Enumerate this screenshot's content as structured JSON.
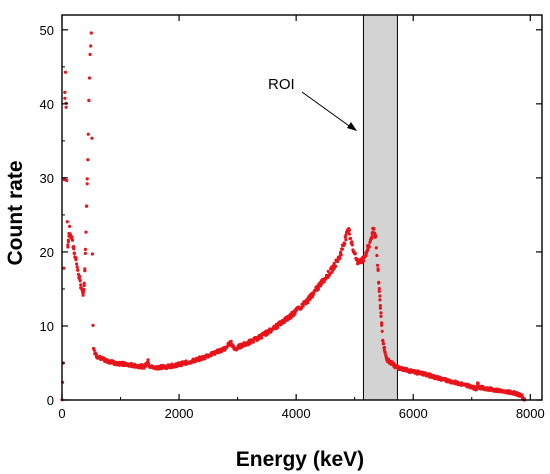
{
  "chart_data": {
    "type": "scatter",
    "xlabel": "Energy (keV)",
    "ylabel": "Count rate",
    "xlim": [
      0,
      8200
    ],
    "ylim": [
      0,
      52
    ],
    "x_ticks": [
      0,
      2000,
      4000,
      6000,
      8000
    ],
    "y_ticks": [
      0,
      10,
      20,
      30,
      40,
      50
    ],
    "grid": false,
    "marker_color": "#e8141b",
    "roi": {
      "label": "ROI",
      "x_start": 5150,
      "x_end": 5730,
      "fill": "#d3d3d3"
    },
    "profile": [
      [
        0,
        0
      ],
      [
        20,
        5
      ],
      [
        40,
        30
      ],
      [
        55,
        47
      ],
      [
        70,
        40
      ],
      [
        85,
        25
      ],
      [
        100,
        21
      ],
      [
        130,
        23
      ],
      [
        160,
        22
      ],
      [
        200,
        20.5
      ],
      [
        260,
        18
      ],
      [
        320,
        15.5
      ],
      [
        360,
        14.5
      ],
      [
        380,
        15.5
      ],
      [
        400,
        20
      ],
      [
        420,
        26
      ],
      [
        440,
        33
      ],
      [
        460,
        40
      ],
      [
        480,
        47
      ],
      [
        500,
        50
      ],
      [
        510,
        35
      ],
      [
        520,
        20
      ],
      [
        530,
        10
      ],
      [
        540,
        7
      ],
      [
        580,
        6
      ],
      [
        700,
        5.5
      ],
      [
        900,
        5
      ],
      [
        1200,
        4.7
      ],
      [
        1400,
        4.5
      ],
      [
        1470,
        5.2
      ],
      [
        1500,
        4.5
      ],
      [
        1600,
        4.4
      ],
      [
        1800,
        4.5
      ],
      [
        2000,
        4.8
      ],
      [
        2200,
        5.2
      ],
      [
        2400,
        5.7
      ],
      [
        2600,
        6.3
      ],
      [
        2800,
        7
      ],
      [
        2880,
        7.8
      ],
      [
        2950,
        6.9
      ],
      [
        3000,
        7.1
      ],
      [
        3200,
        7.8
      ],
      [
        3400,
        8.6
      ],
      [
        3600,
        9.6
      ],
      [
        3800,
        10.7
      ],
      [
        4000,
        12
      ],
      [
        4200,
        13.5
      ],
      [
        4400,
        15.5
      ],
      [
        4600,
        17.5
      ],
      [
        4750,
        19.5
      ],
      [
        4850,
        22
      ],
      [
        4900,
        23
      ],
      [
        4950,
        21
      ],
      [
        5050,
        18.5
      ],
      [
        5150,
        19
      ],
      [
        5250,
        21
      ],
      [
        5320,
        23
      ],
      [
        5360,
        22
      ],
      [
        5420,
        15
      ],
      [
        5480,
        8
      ],
      [
        5550,
        5.5
      ],
      [
        5700,
        4.5
      ],
      [
        5900,
        4
      ],
      [
        6200,
        3.5
      ],
      [
        6500,
        2.8
      ],
      [
        6800,
        2.2
      ],
      [
        7000,
        1.8
      ],
      [
        7080,
        1.5
      ],
      [
        7100,
        2.5
      ],
      [
        7130,
        1.7
      ],
      [
        7300,
        1.5
      ],
      [
        7500,
        1.2
      ],
      [
        7700,
        1
      ],
      [
        7850,
        0.6
      ],
      [
        7900,
        0
      ]
    ]
  }
}
